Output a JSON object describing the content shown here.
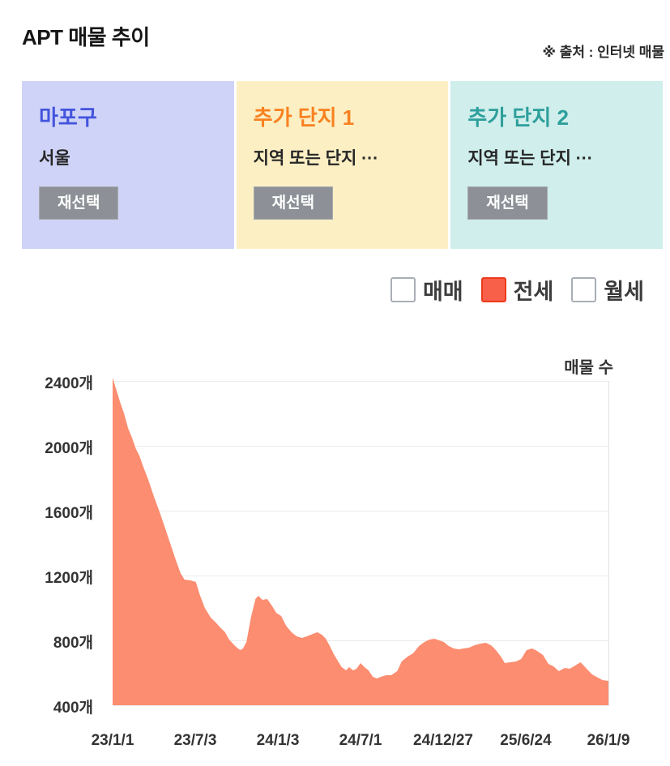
{
  "header": {
    "title": "APT 매물 추이",
    "source": "※ 출처 : 인터넷 매물"
  },
  "cards": [
    {
      "title": "마포구",
      "subtitle": "서울",
      "button_label": "재선택",
      "bg": "#cfd3f7",
      "title_color": "#4354dd"
    },
    {
      "title": "추가 단지 1",
      "subtitle": "지역 또는 단지 ···",
      "button_label": "재선택",
      "bg": "#fcefc4",
      "title_color": "#f8811f"
    },
    {
      "title": "추가 단지 2",
      "subtitle": "지역 또는 단지 ···",
      "button_label": "재선택",
      "bg": "#cfeeec",
      "title_color": "#2d9f9b"
    }
  ],
  "legend": {
    "items": [
      {
        "label": "매매",
        "checked": false
      },
      {
        "label": "전세",
        "checked": true,
        "fill": "#f8604a",
        "border": "#ee3a1d"
      },
      {
        "label": "월세",
        "checked": false
      }
    ]
  },
  "chart_data": {
    "type": "area",
    "title": "매물 수",
    "unit": "개",
    "series_name": "전세 매물 수",
    "area_color": "#fc8d70",
    "grid": true,
    "x_ticks": [
      "23/1/1",
      "23/7/3",
      "24/1/3",
      "24/7/1",
      "24/12/27",
      "25/6/24",
      "26/1/9"
    ],
    "y_ticks": [
      2400,
      2000,
      1600,
      1200,
      800,
      400
    ],
    "ylim": [
      400,
      2400
    ],
    "x_note": "points use fractional position along time axis from 23/1/1 (0.0) to 26/1/9 (1.0)",
    "points": [
      [
        0.0,
        2420
      ],
      [
        0.007,
        2350
      ],
      [
        0.015,
        2270
      ],
      [
        0.023,
        2200
      ],
      [
        0.031,
        2110
      ],
      [
        0.039,
        2050
      ],
      [
        0.047,
        1980
      ],
      [
        0.054,
        1940
      ],
      [
        0.062,
        1870
      ],
      [
        0.072,
        1790
      ],
      [
        0.083,
        1690
      ],
      [
        0.095,
        1590
      ],
      [
        0.105,
        1500
      ],
      [
        0.116,
        1400
      ],
      [
        0.127,
        1300
      ],
      [
        0.137,
        1215
      ],
      [
        0.145,
        1175
      ],
      [
        0.157,
        1170
      ],
      [
        0.168,
        1160
      ],
      [
        0.176,
        1080
      ],
      [
        0.186,
        1000
      ],
      [
        0.198,
        940
      ],
      [
        0.208,
        910
      ],
      [
        0.217,
        880
      ],
      [
        0.227,
        850
      ],
      [
        0.235,
        805
      ],
      [
        0.247,
        765
      ],
      [
        0.257,
        740
      ],
      [
        0.263,
        750
      ],
      [
        0.27,
        790
      ],
      [
        0.279,
        940
      ],
      [
        0.288,
        1055
      ],
      [
        0.294,
        1075
      ],
      [
        0.302,
        1050
      ],
      [
        0.312,
        1055
      ],
      [
        0.322,
        1010
      ],
      [
        0.33,
        970
      ],
      [
        0.34,
        950
      ],
      [
        0.35,
        890
      ],
      [
        0.361,
        850
      ],
      [
        0.371,
        825
      ],
      [
        0.382,
        815
      ],
      [
        0.392,
        825
      ],
      [
        0.404,
        840
      ],
      [
        0.413,
        850
      ],
      [
        0.422,
        835
      ],
      [
        0.43,
        810
      ],
      [
        0.438,
        765
      ],
      [
        0.446,
        715
      ],
      [
        0.454,
        675
      ],
      [
        0.462,
        635
      ],
      [
        0.471,
        615
      ],
      [
        0.477,
        635
      ],
      [
        0.485,
        615
      ],
      [
        0.492,
        625
      ],
      [
        0.5,
        660
      ],
      [
        0.508,
        635
      ],
      [
        0.516,
        615
      ],
      [
        0.525,
        575
      ],
      [
        0.533,
        565
      ],
      [
        0.541,
        575
      ],
      [
        0.552,
        585
      ],
      [
        0.562,
        585
      ],
      [
        0.574,
        610
      ],
      [
        0.583,
        670
      ],
      [
        0.595,
        700
      ],
      [
        0.606,
        720
      ],
      [
        0.618,
        765
      ],
      [
        0.629,
        790
      ],
      [
        0.639,
        805
      ],
      [
        0.649,
        810
      ],
      [
        0.659,
        800
      ],
      [
        0.668,
        790
      ],
      [
        0.678,
        765
      ],
      [
        0.688,
        750
      ],
      [
        0.698,
        745
      ],
      [
        0.708,
        750
      ],
      [
        0.719,
        755
      ],
      [
        0.73,
        770
      ],
      [
        0.742,
        780
      ],
      [
        0.753,
        785
      ],
      [
        0.763,
        770
      ],
      [
        0.773,
        740
      ],
      [
        0.783,
        700
      ],
      [
        0.791,
        660
      ],
      [
        0.802,
        665
      ],
      [
        0.814,
        670
      ],
      [
        0.824,
        685
      ],
      [
        0.835,
        740
      ],
      [
        0.846,
        750
      ],
      [
        0.856,
        735
      ],
      [
        0.868,
        710
      ],
      [
        0.879,
        655
      ],
      [
        0.889,
        640
      ],
      [
        0.9,
        610
      ],
      [
        0.912,
        630
      ],
      [
        0.922,
        625
      ],
      [
        0.933,
        645
      ],
      [
        0.944,
        665
      ],
      [
        0.956,
        625
      ],
      [
        0.967,
        590
      ],
      [
        0.979,
        570
      ],
      [
        0.988,
        555
      ],
      [
        1.0,
        550
      ]
    ]
  }
}
